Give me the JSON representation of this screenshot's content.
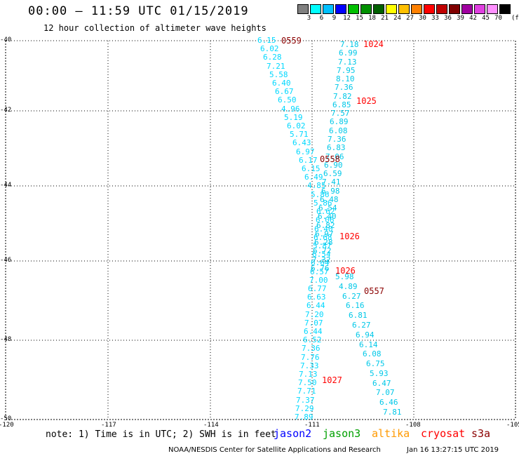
{
  "header": {
    "title": "00:00 — 11:59 UTC 01/15/2019",
    "subtitle": "12 hour collection of altimeter wave heights"
  },
  "legend": {
    "unit": "(ft)",
    "bins": [
      {
        "label": "3",
        "color": "#808080"
      },
      {
        "label": "6",
        "color": "#00ffff"
      },
      {
        "label": "9",
        "color": "#00c0ff"
      },
      {
        "label": "12",
        "color": "#0000ff"
      },
      {
        "label": "15",
        "color": "#00c000"
      },
      {
        "label": "18",
        "color": "#009000"
      },
      {
        "label": "21",
        "color": "#006000"
      },
      {
        "label": "24",
        "color": "#ffff00"
      },
      {
        "label": "27",
        "color": "#ffc000"
      },
      {
        "label": "30",
        "color": "#ff8000"
      },
      {
        "label": "33",
        "color": "#ff0000"
      },
      {
        "label": "36",
        "color": "#c00000"
      },
      {
        "label": "39",
        "color": "#800000"
      },
      {
        "label": "42",
        "color": "#a000a0"
      },
      {
        "label": "45",
        "color": "#e040e0"
      },
      {
        "label": "70",
        "color": "#ff90ff"
      },
      {
        "label": "",
        "color": "#000000"
      }
    ]
  },
  "map": {
    "lat_labels": [
      "-40",
      "-42",
      "-44",
      "-46",
      "-48",
      "-50"
    ],
    "lon_labels": [
      "-120",
      "-117",
      "-114",
      "-111",
      "-108",
      "-105"
    ],
    "track_colors": {
      "jason2": "#00d8ff",
      "jason3": "#00c8e8"
    },
    "tracks": [
      {
        "id": "jason2-pass",
        "values": [
          "6.15",
          "6.02",
          "6.28",
          "7.21",
          "5.58",
          "6.40",
          "6.67",
          "6.50",
          "4.96",
          "5.19",
          "6.02",
          "5.71",
          "6.43",
          "6.97",
          "6.17",
          "6.15",
          "6.49",
          "4.85",
          "5.86",
          "5.86",
          "6.62",
          "6.06",
          "6.40",
          "6.68",
          "5.87",
          "6.54",
          "6.64",
          "6.57",
          "7.00",
          "6.77",
          "6.63",
          "6.44",
          "7.20",
          "7.07",
          "6.44",
          "6.52",
          "7.36",
          "7.76",
          "7.33",
          "7.13",
          "7.50",
          "7.71",
          "7.37",
          "7.29",
          "7.89"
        ]
      },
      {
        "id": "jason3-pass",
        "values": [
          "7.18",
          "6.99",
          "7.13",
          "7.95",
          "8.10",
          "7.36",
          "7.82",
          "6.85",
          "7.57",
          "6.89",
          "6.08",
          "7.36",
          "6.83",
          "7.06",
          "6.90",
          "6.59",
          "7.41",
          "6.98",
          "6.48",
          "6.54",
          "6.40",
          "6.82",
          "6.97",
          "6.28",
          "6.72",
          "7.32",
          "6.76",
          "5.98",
          "4.89",
          "6.27",
          "6.16",
          "6.81",
          "6.27",
          "6.94",
          "6.14",
          "6.08",
          "6.75",
          "5.93",
          "6.47",
          "7.07",
          "6.46",
          "7.81"
        ]
      }
    ],
    "times": [
      {
        "label": "0559",
        "color": "#8b0000"
      },
      {
        "label": "1024",
        "color": "#ff0000"
      },
      {
        "label": "1025",
        "color": "#ff0000"
      },
      {
        "label": "0558",
        "color": "#8b0000"
      },
      {
        "label": "1026",
        "color": "#ff0000"
      },
      {
        "label": "1026",
        "color": "#ff0000"
      },
      {
        "label": "0557",
        "color": "#8b0000"
      },
      {
        "label": "1027",
        "color": "#ff0000"
      }
    ]
  },
  "footer": {
    "note": "note: 1) Time is in UTC; 2) SWH is in feet",
    "satellites": [
      {
        "label": "jason2",
        "color": "#0000ff"
      },
      {
        "label": "jason3",
        "color": "#00a000"
      },
      {
        "label": "altika",
        "color": "#ff9900"
      },
      {
        "label": "cryosat",
        "color": "#ff0000"
      },
      {
        "label": "s3a",
        "color": "#8b0000"
      }
    ],
    "credit": "NOAA/NESDIS Center for Satellite Applications and Research",
    "timestamp": "Jan 16 13:27:15 UTC 2019"
  }
}
